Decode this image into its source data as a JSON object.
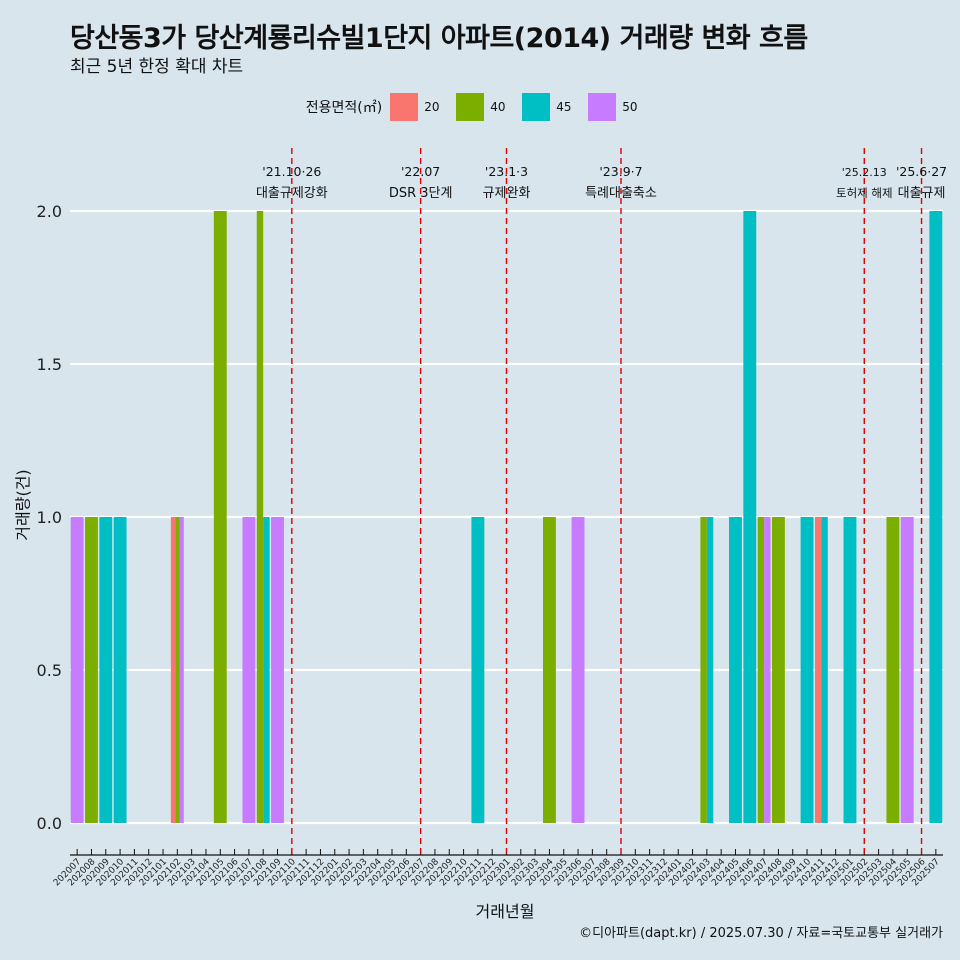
{
  "chart_data": {
    "type": "bar",
    "title": "당산동3가 당산계룡리슈빌1단지 아파트(2014) 거래량 변화 흐름",
    "subtitle": "최근 5년 한정 확대 차트",
    "xlabel": "거래년월",
    "ylabel": "거래량(건)",
    "ylim": [
      0,
      2
    ],
    "y_ticks": [
      "0.0",
      "0.5",
      "1.0",
      "1.5",
      "2.0"
    ],
    "legend_title": "전용면적(㎡)",
    "legend_placement": "top",
    "categories": [
      "202007",
      "202008",
      "202009",
      "202010",
      "202011",
      "202012",
      "202101",
      "202102",
      "202103",
      "202104",
      "202105",
      "202106",
      "202107",
      "202108",
      "202109",
      "202110",
      "202111",
      "202112",
      "202201",
      "202202",
      "202203",
      "202204",
      "202205",
      "202206",
      "202207",
      "202208",
      "202209",
      "202210",
      "202211",
      "202212",
      "202301",
      "202302",
      "202303",
      "202304",
      "202305",
      "202306",
      "202307",
      "202308",
      "202309",
      "202310",
      "202311",
      "202312",
      "202401",
      "202402",
      "202403",
      "202404",
      "202405",
      "202406",
      "202407",
      "202408",
      "202409",
      "202410",
      "202411",
      "202412",
      "202501",
      "202502",
      "202503",
      "202504",
      "202505",
      "202506",
      "202507"
    ],
    "series": [
      {
        "name": "20",
        "color": "#f8766d",
        "points": [
          {
            "x": "202102",
            "y": 1
          },
          {
            "x": "202411",
            "y": 1
          }
        ]
      },
      {
        "name": "40",
        "color": "#7cae00",
        "points": [
          {
            "x": "202008",
            "y": 1
          },
          {
            "x": "202102",
            "y": 1
          },
          {
            "x": "202105",
            "y": 2
          },
          {
            "x": "202108",
            "y": 2
          },
          {
            "x": "202304",
            "y": 1
          },
          {
            "x": "202403",
            "y": 1
          },
          {
            "x": "202407",
            "y": 1
          },
          {
            "x": "202408",
            "y": 1
          },
          {
            "x": "202504",
            "y": 1
          }
        ]
      },
      {
        "name": "45",
        "color": "#00bfc4",
        "points": [
          {
            "x": "202009",
            "y": 1
          },
          {
            "x": "202010",
            "y": 1
          },
          {
            "x": "202108",
            "y": 1
          },
          {
            "x": "202211",
            "y": 1
          },
          {
            "x": "202403",
            "y": 1
          },
          {
            "x": "202405",
            "y": 1
          },
          {
            "x": "202406",
            "y": 2
          },
          {
            "x": "202410",
            "y": 1
          },
          {
            "x": "202411",
            "y": 1
          },
          {
            "x": "202501",
            "y": 1
          },
          {
            "x": "202507",
            "y": 2
          }
        ]
      },
      {
        "name": "50",
        "color": "#c77cff",
        "points": [
          {
            "x": "202007",
            "y": 1
          },
          {
            "x": "202102",
            "y": 1
          },
          {
            "x": "202107",
            "y": 1
          },
          {
            "x": "202109",
            "y": 1
          },
          {
            "x": "202306",
            "y": 1
          },
          {
            "x": "202407",
            "y": 1
          },
          {
            "x": "202505",
            "y": 1
          }
        ]
      }
    ],
    "annotations": [
      {
        "x": "202110",
        "date": "'21.10·26",
        "label": "대출규제강화"
      },
      {
        "x": "202207",
        "date": "'22.07",
        "label": "DSR 3단계"
      },
      {
        "x": "202301",
        "date": "'23.1·3",
        "label": "규제완화"
      },
      {
        "x": "202309",
        "date": "'23.9·7",
        "label": "특례대출축소"
      },
      {
        "x": "202502",
        "date": "'25.2.13",
        "label": "토허제 해제"
      },
      {
        "x": "202506",
        "date": "'25.6·27",
        "label": "대출규제"
      }
    ],
    "grid": true
  },
  "caption": "©디아파트(dapt.kr) / 2025.07.30 / 자료=국토교통부 실거래가"
}
